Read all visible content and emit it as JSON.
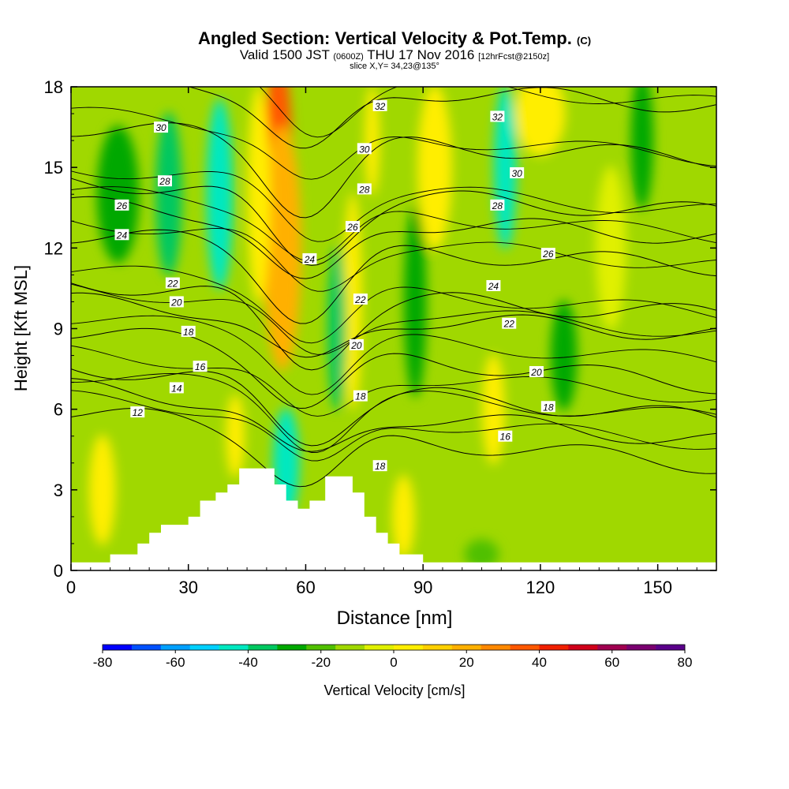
{
  "title": {
    "main": "Angled Section: Vertical Velocity & Pot.Temp.",
    "main_unit": "(C)",
    "valid": "Valid 1500 JST",
    "valid_utc": "(0600Z)",
    "valid_date": "THU 17 Nov 2016",
    "forecast": "[12hrFcst@2150z]",
    "slice": "slice X,Y= 34,23@135°"
  },
  "colors": {
    "ramp": [
      "#0000ff",
      "#0050ff",
      "#00a0ff",
      "#00d0ff",
      "#00e8c0",
      "#00c860",
      "#00a800",
      "#50c000",
      "#a0d800",
      "#e0f000",
      "#ffee00",
      "#ffd000",
      "#ffb000",
      "#ff8800",
      "#ff5800",
      "#f02000",
      "#d0001a",
      "#a00050",
      "#7a0070",
      "#5a008a"
    ],
    "terrain": "#ffffff",
    "contour": "#000000"
  },
  "chart_data": {
    "type": "heatmap",
    "xlabel": "Distance [nm]",
    "ylabel": "Height [Kft MSL]",
    "xlim": [
      0,
      165
    ],
    "ylim": [
      0,
      18
    ],
    "xticks": [
      0,
      30,
      60,
      90,
      120,
      150
    ],
    "yticks": [
      0,
      3,
      6,
      9,
      12,
      15,
      18
    ],
    "colorbar": {
      "label": "Vertical Velocity [cm/s]",
      "levels": [
        -80,
        -70,
        -60,
        -50,
        -40,
        -30,
        -20,
        -10,
        0,
        10,
        20,
        30,
        40,
        50,
        60,
        70,
        80
      ],
      "tick_labels": [
        -80,
        -60,
        -40,
        -20,
        0,
        20,
        40,
        60,
        80
      ]
    },
    "velocity_features": [
      {
        "x": 53,
        "y": 16,
        "w": 6,
        "h": 6,
        "value": 60
      },
      {
        "x": 54,
        "y": 12,
        "w": 9,
        "h": 9,
        "value": 40
      },
      {
        "x": 48,
        "y": 14,
        "w": 5,
        "h": 8,
        "value": 20
      },
      {
        "x": 72,
        "y": 10,
        "w": 4,
        "h": 8,
        "value": 25
      },
      {
        "x": 77,
        "y": 16,
        "w": 3,
        "h": 4,
        "value": 20
      },
      {
        "x": 93,
        "y": 15,
        "w": 8,
        "h": 6,
        "value": 20
      },
      {
        "x": 120,
        "y": 17,
        "w": 12,
        "h": 3,
        "value": 20
      },
      {
        "x": 108,
        "y": 6,
        "w": 5,
        "h": 4,
        "value": 20
      },
      {
        "x": 8,
        "y": 3,
        "w": 6,
        "h": 4,
        "value": 20
      },
      {
        "x": 42,
        "y": 5,
        "w": 4,
        "h": 3,
        "value": 20
      },
      {
        "x": 85,
        "y": 2,
        "w": 5,
        "h": 3,
        "value": 20
      },
      {
        "x": 138,
        "y": 12,
        "w": 7,
        "h": 6,
        "value": 10
      },
      {
        "x": 25,
        "y": 14,
        "w": 6,
        "h": 6,
        "value": -30
      },
      {
        "x": 38,
        "y": 14,
        "w": 6,
        "h": 7,
        "value": -40
      },
      {
        "x": 111,
        "y": 15,
        "w": 5,
        "h": 6,
        "value": -40
      },
      {
        "x": 55,
        "y": 4,
        "w": 6,
        "h": 4,
        "value": -40
      },
      {
        "x": 68,
        "y": 9,
        "w": 4,
        "h": 6,
        "value": -30
      },
      {
        "x": 88,
        "y": 10,
        "w": 5,
        "h": 7,
        "value": -20
      },
      {
        "x": 126,
        "y": 8,
        "w": 6,
        "h": 4,
        "value": -20
      },
      {
        "x": 146,
        "y": 16,
        "w": 5,
        "h": 5,
        "value": -20
      },
      {
        "x": 12,
        "y": 14,
        "w": 10,
        "h": 5,
        "value": -15
      },
      {
        "x": 105,
        "y": 0.6,
        "w": 8,
        "h": 1,
        "value": -10
      }
    ],
    "terrain": [
      [
        0,
        0.3
      ],
      [
        10,
        0.3
      ],
      [
        10,
        0.6
      ],
      [
        17,
        0.6
      ],
      [
        17,
        1
      ],
      [
        20,
        1
      ],
      [
        20,
        1.4
      ],
      [
        23,
        1.4
      ],
      [
        23,
        1.7
      ],
      [
        30,
        1.7
      ],
      [
        30,
        2
      ],
      [
        33,
        2
      ],
      [
        33,
        2.6
      ],
      [
        37,
        2.6
      ],
      [
        37,
        2.9
      ],
      [
        40,
        2.9
      ],
      [
        40,
        3.2
      ],
      [
        43,
        3.2
      ],
      [
        43,
        3.8
      ],
      [
        52,
        3.8
      ],
      [
        52,
        3.2
      ],
      [
        55,
        3.2
      ],
      [
        55,
        2.6
      ],
      [
        58,
        2.6
      ],
      [
        58,
        2.3
      ],
      [
        61,
        2.3
      ],
      [
        61,
        2.6
      ],
      [
        65,
        2.6
      ],
      [
        65,
        3.5
      ],
      [
        72,
        3.5
      ],
      [
        72,
        2.9
      ],
      [
        75,
        2.9
      ],
      [
        75,
        2
      ],
      [
        78,
        2
      ],
      [
        78,
        1.4
      ],
      [
        81,
        1.4
      ],
      [
        81,
        1
      ],
      [
        84,
        1
      ],
      [
        84,
        0.6
      ],
      [
        90,
        0.6
      ],
      [
        90,
        0.3
      ],
      [
        165,
        0.3
      ]
    ],
    "isentropes": [
      {
        "level": 12,
        "label": "12",
        "base": 5.9,
        "label_x": 17
      },
      {
        "level": 14,
        "label": "14",
        "base": 6.8,
        "label_x": 27
      },
      {
        "level": 16,
        "label": "16",
        "base": 7.6,
        "label_x": 33
      },
      {
        "level": 18,
        "label": "18",
        "base": 8.9,
        "label_x": 30
      },
      {
        "level": 20,
        "label": "20",
        "base": 10.0,
        "label_x": 27
      },
      {
        "level": 22,
        "label": "22",
        "base": 10.7,
        "label_x": 26
      },
      {
        "level": 24,
        "label": "24",
        "base": 12.5,
        "label_x": 13
      },
      {
        "level": 26,
        "label": "26",
        "base": 13.6,
        "label_x": 13
      },
      {
        "level": 28,
        "label": "28",
        "base": 14.5,
        "label_x": 24
      },
      {
        "level": 30,
        "label": "30",
        "base": 16.5,
        "label_x": 23
      },
      {
        "level": 32,
        "label": "32",
        "base": 18.5,
        "label_x": 80
      }
    ],
    "isentrope_labels": [
      {
        "text": "12",
        "x": 17,
        "y": 5.9
      },
      {
        "text": "14",
        "x": 27,
        "y": 6.8
      },
      {
        "text": "16",
        "x": 33,
        "y": 7.6
      },
      {
        "text": "18",
        "x": 30,
        "y": 8.9
      },
      {
        "text": "20",
        "x": 27,
        "y": 10.0
      },
      {
        "text": "22",
        "x": 26,
        "y": 10.7
      },
      {
        "text": "24",
        "x": 13,
        "y": 12.5
      },
      {
        "text": "26",
        "x": 13,
        "y": 13.6
      },
      {
        "text": "28",
        "x": 24,
        "y": 14.5
      },
      {
        "text": "30",
        "x": 23,
        "y": 16.5
      },
      {
        "text": "24",
        "x": 61,
        "y": 11.6
      },
      {
        "text": "26",
        "x": 72,
        "y": 12.8
      },
      {
        "text": "28",
        "x": 75,
        "y": 14.2
      },
      {
        "text": "30",
        "x": 75,
        "y": 15.7
      },
      {
        "text": "32",
        "x": 79,
        "y": 17.3
      },
      {
        "text": "22",
        "x": 74,
        "y": 10.1
      },
      {
        "text": "20",
        "x": 73,
        "y": 8.4
      },
      {
        "text": "18",
        "x": 74,
        "y": 6.5
      },
      {
        "text": "18",
        "x": 79,
        "y": 3.9
      },
      {
        "text": "32",
        "x": 109,
        "y": 16.9
      },
      {
        "text": "30",
        "x": 114,
        "y": 14.8
      },
      {
        "text": "28",
        "x": 109,
        "y": 13.6
      },
      {
        "text": "26",
        "x": 122,
        "y": 11.8
      },
      {
        "text": "24",
        "x": 108,
        "y": 10.6
      },
      {
        "text": "22",
        "x": 112,
        "y": 9.2
      },
      {
        "text": "20",
        "x": 119,
        "y": 7.4
      },
      {
        "text": "18",
        "x": 122,
        "y": 6.1
      },
      {
        "text": "16",
        "x": 111,
        "y": 5
      }
    ]
  }
}
